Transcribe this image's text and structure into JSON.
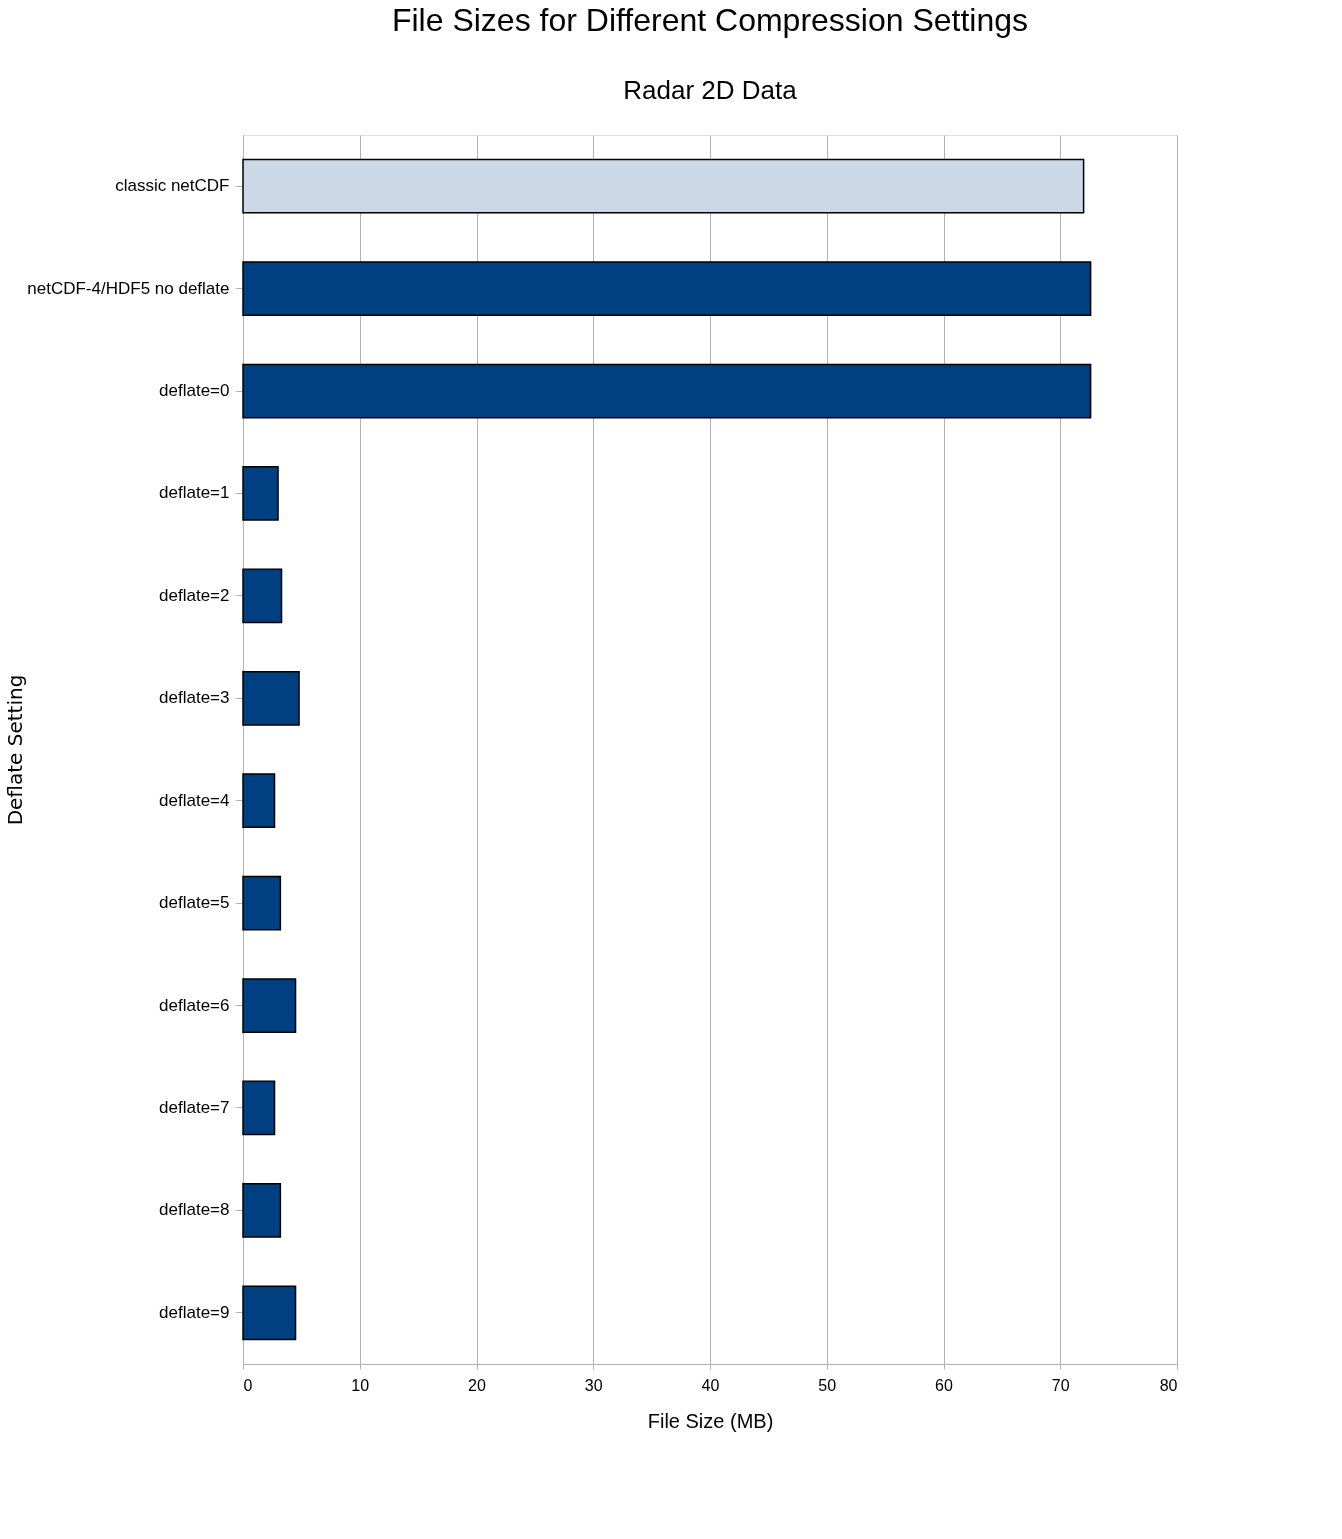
{
  "chart_data": {
    "type": "bar",
    "orientation": "horizontal",
    "title": "File Sizes for Different Compression Settings",
    "subtitle": "Radar 2D Data",
    "xlabel": "File Size (MB)",
    "ylabel": "Deflate Setting",
    "categories": [
      "classic netCDF",
      "netCDF-4/HDF5 no deflate",
      "deflate=0",
      "deflate=1",
      "deflate=2",
      "deflate=3",
      "deflate=4",
      "deflate=5",
      "deflate=6",
      "deflate=7",
      "deflate=8",
      "deflate=9"
    ],
    "values": [
      72.0,
      72.6,
      72.6,
      3.0,
      3.3,
      4.8,
      2.7,
      3.2,
      4.5,
      2.7,
      3.2,
      4.5
    ],
    "colors": [
      "#cbd9e6",
      "#004080",
      "#004080",
      "#004080",
      "#004080",
      "#004080",
      "#004080",
      "#004080",
      "#004080",
      "#004080",
      "#004080",
      "#004080"
    ],
    "xlim": [
      0,
      80
    ],
    "xticks": [
      0,
      10,
      20,
      30,
      40,
      50,
      60,
      70,
      80
    ],
    "grid": "x"
  }
}
